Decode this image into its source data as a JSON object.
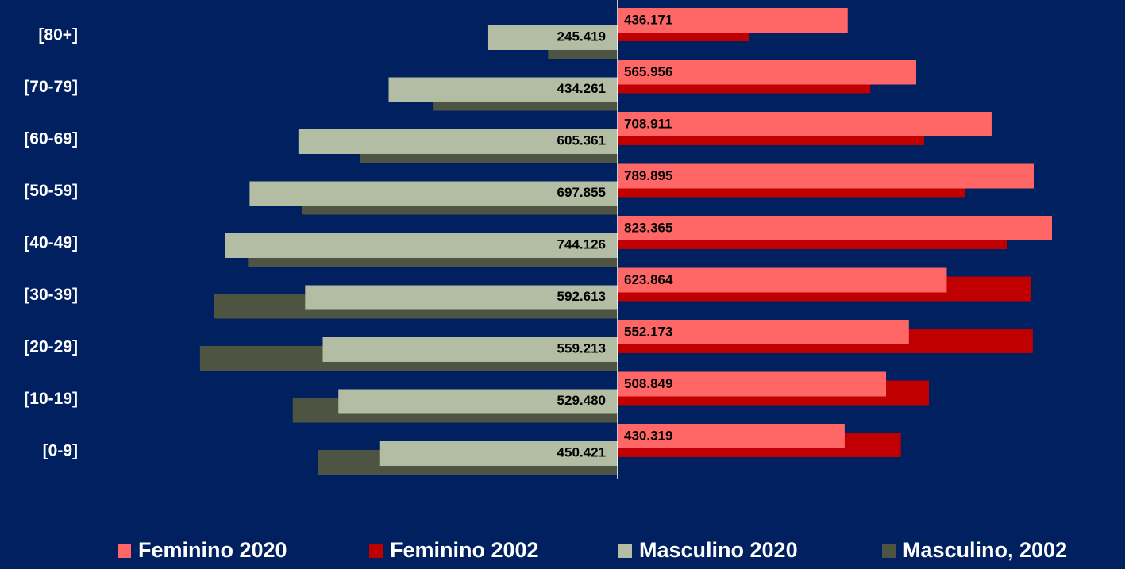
{
  "chart_data": {
    "type": "bar",
    "orientation": "horizontal-pyramid",
    "categories": [
      "[80+]",
      "[70-79]",
      "[60-69]",
      "[50-59]",
      "[40-49]",
      "[30-39]",
      "[20-29]",
      "[10-19]",
      "[0-9]"
    ],
    "series": [
      {
        "name": "Feminino 2020",
        "color": "#ff6666",
        "values": [
          436171,
          565956,
          708911,
          789895,
          823365,
          623864,
          552173,
          508849,
          430319
        ],
        "value_labels": [
          "436.171",
          "565.956",
          "708.911",
          "789.895",
          "823.365",
          "623.864",
          "552.173",
          "508.849",
          "430.319"
        ]
      },
      {
        "name": "Feminino 2002",
        "color": "#c00000",
        "values": [
          250000,
          479000,
          581000,
          659000,
          739000,
          784000,
          787000,
          590000,
          537000
        ]
      },
      {
        "name": "Masculino 2020",
        "color": "#b2bda4",
        "values": [
          245419,
          434261,
          605361,
          697855,
          744126,
          592613,
          559213,
          529480,
          450421
        ],
        "value_labels": [
          "245.419",
          "434.261",
          "605.361",
          "697.855",
          "744.126",
          "592.613",
          "559.213",
          "529.480",
          "450.421"
        ]
      },
      {
        "name": "Masculino, 2002",
        "color": "#4d5542",
        "values": [
          132000,
          349000,
          489000,
          599000,
          701000,
          765000,
          792000,
          616000,
          569000
        ]
      }
    ],
    "legend": "bottom"
  }
}
